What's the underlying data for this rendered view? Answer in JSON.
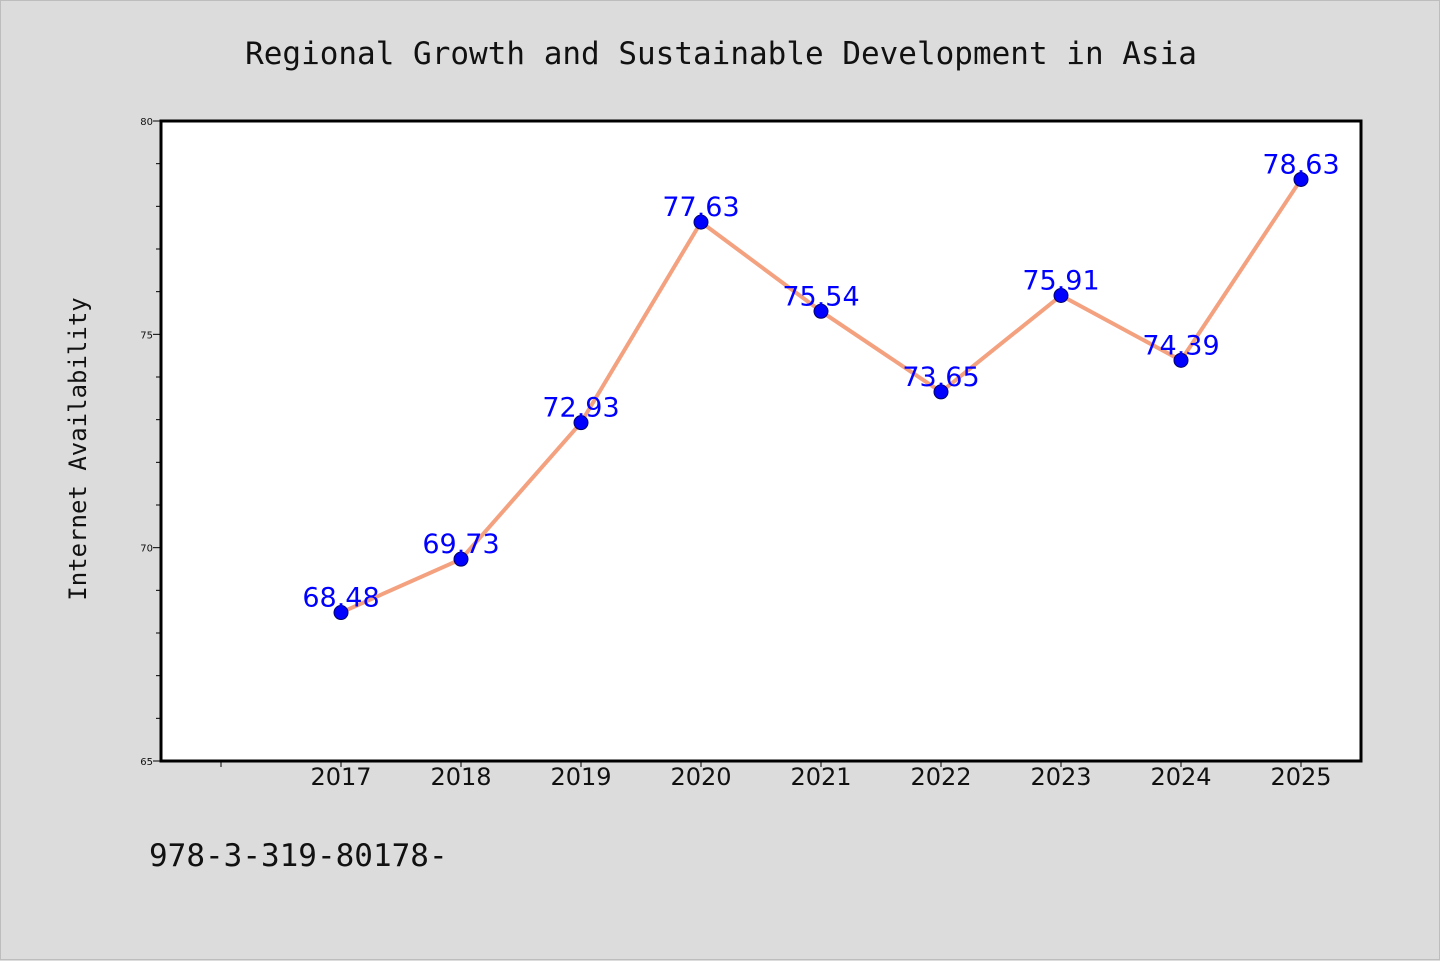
{
  "page": {
    "background": "#dcdcdc",
    "plot_background": "#ffffff"
  },
  "chart_data": {
    "type": "line",
    "title": "Regional Growth and Sustainable Development in Asia",
    "xlabel": "",
    "ylabel": "Internet Availability",
    "categories": [
      "2017",
      "2018",
      "2019",
      "2020",
      "2021",
      "2022",
      "2023",
      "2024",
      "2025"
    ],
    "series": [
      {
        "values": [
          68.48,
          69.73,
          72.93,
          77.63,
          75.54,
          73.65,
          75.91,
          74.39,
          78.63
        ],
        "labels": [
          "68.48",
          "69.73",
          "72.93",
          "77.63",
          "75.54",
          "73.65",
          "75.91",
          "74.39",
          "78.63"
        ],
        "line_color": "#f4a17f",
        "marker_color": "#0000ff",
        "label_color": "#0000ff"
      }
    ],
    "ylim": [
      65,
      80
    ],
    "y_ticks": [
      65,
      70,
      75,
      80
    ],
    "y_tick_labels": [
      "65",
      "70",
      "75",
      "80"
    ],
    "grid": false,
    "legend": "none"
  },
  "footer": {
    "text": "978-3-319-80178-"
  }
}
